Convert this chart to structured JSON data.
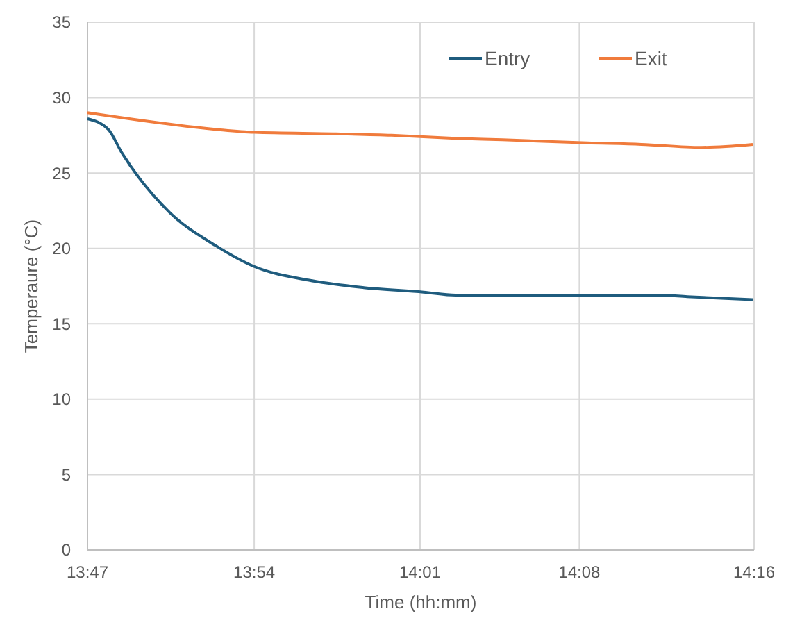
{
  "chart_data": {
    "type": "line",
    "xlabel": "Time (hh:mm)",
    "ylabel": "Temperaure (°C)",
    "xlim": [
      13.7833,
      14.2667
    ],
    "xticks": [
      {
        "value": 13.7833,
        "label": "13:47"
      },
      {
        "value": 13.9042,
        "label": "13:54"
      },
      {
        "value": 14.0245,
        "label": "14:01"
      },
      {
        "value": 14.14,
        "label": "14:08"
      },
      {
        "value": 14.2667,
        "label": "14:16"
      }
    ],
    "ylim": [
      0,
      35
    ],
    "yticks": [
      0,
      5,
      10,
      15,
      20,
      25,
      30,
      35
    ],
    "grid": true,
    "legend": "top right",
    "marker": "none",
    "line_style": "solid",
    "series": [
      {
        "name": "Entry",
        "color": "#1f5c7e",
        "x": [
          13.7833,
          13.7983,
          13.8085,
          13.8427,
          13.876,
          13.9042,
          13.9433,
          13.9837,
          14.027,
          14.0502,
          14.0843,
          14.1458,
          14.1982,
          14.2183,
          14.2657
        ],
        "values": [
          28.6,
          27.9,
          26.3,
          22.4,
          20.2,
          18.8,
          17.9,
          17.4,
          17.1,
          16.9,
          16.9,
          16.9,
          16.9,
          16.8,
          16.6
        ]
      },
      {
        "name": "Exit",
        "color": "#f07b3c",
        "x": [
          13.7833,
          13.876,
          13.9042,
          13.9635,
          14.0038,
          14.027,
          14.0502,
          14.0843,
          14.1458,
          14.185,
          14.2283,
          14.2657
        ],
        "values": [
          29.0,
          27.9,
          27.7,
          27.6,
          27.5,
          27.4,
          27.3,
          27.2,
          27.0,
          26.9,
          26.7,
          26.9
        ]
      }
    ]
  }
}
